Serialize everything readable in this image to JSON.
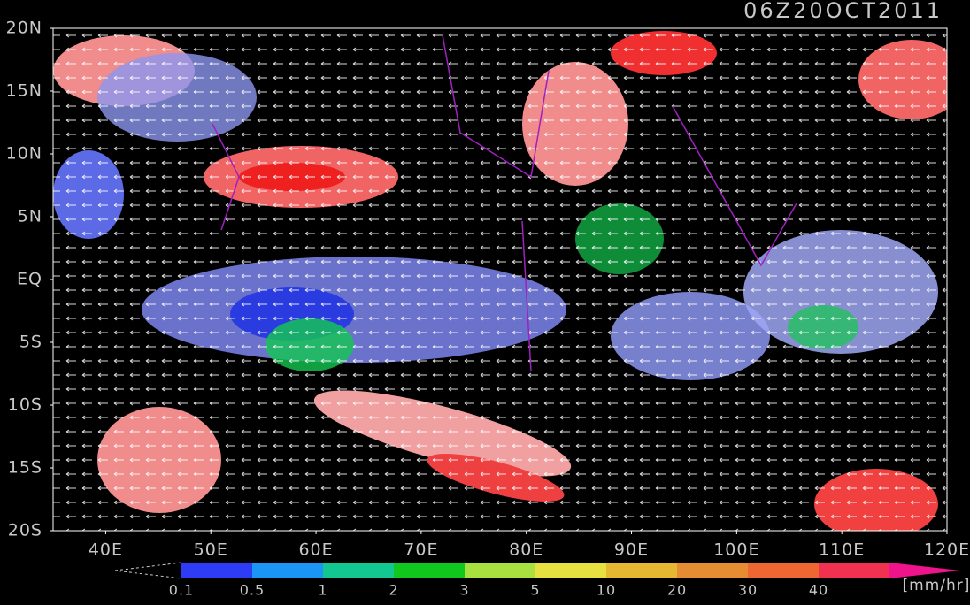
{
  "map": {
    "title": "06Z20OCT2011",
    "lat_labels": [
      "20N",
      "15N",
      "10N",
      "5N",
      "EQ",
      "5S",
      "10S",
      "15S",
      "20S"
    ],
    "lon_labels": [
      "40E",
      "50E",
      "60E",
      "70E",
      "80E",
      "90E",
      "100E",
      "110E",
      "120E"
    ],
    "colorbar": {
      "levels": [
        0.1,
        0.5,
        1,
        2,
        3,
        5,
        10,
        20,
        30,
        40
      ],
      "colors": [
        "#2e3cf5",
        "#1c96f5",
        "#12c890",
        "#10c81e",
        "#a8e040",
        "#e6e040",
        "#e6b832",
        "#e68c32",
        "#ee6632",
        "#f03250"
      ],
      "over_color": "#f0148c",
      "unit": "[mm/hr]"
    }
  }
}
